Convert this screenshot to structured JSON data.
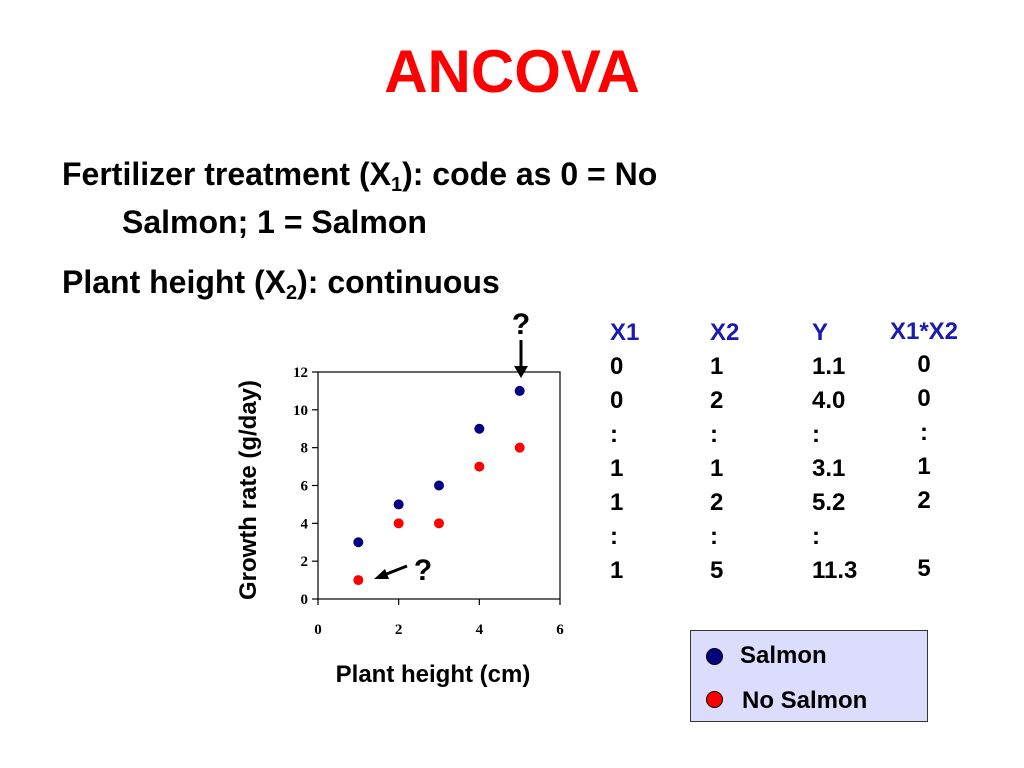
{
  "slide": {
    "title": "ANCOVA",
    "bullet1": {
      "prefix": "Fertilizer treatment (X",
      "sub": "1",
      "suffix": "): code as 0 = No",
      "line2": "Salmon; 1 = Salmon"
    },
    "bullet2": {
      "prefix": "Plant height (X",
      "sub": "2",
      "suffix": "): continuous"
    }
  },
  "table": {
    "columns": [
      {
        "header": "X1",
        "values": [
          "0",
          "0",
          ":",
          "1",
          "1",
          ":",
          "1"
        ]
      },
      {
        "header": "X2",
        "values": [
          "1",
          "2",
          ":",
          "1",
          "2",
          ":",
          "5"
        ]
      },
      {
        "header": "Y",
        "values": [
          "1.1",
          "4.0",
          ":",
          "3.1",
          "5.2",
          ":",
          "11.3"
        ]
      },
      {
        "header": "X1*X2",
        "values": [
          "0",
          "0",
          ":",
          "1",
          "2",
          "",
          "5"
        ]
      }
    ]
  },
  "legend": {
    "items": [
      {
        "label": "Salmon",
        "color": "#000080"
      },
      {
        "label": "No Salmon",
        "color": "#ff0000"
      }
    ]
  },
  "annotations": {
    "top_mark": "?",
    "bottom_mark": "?"
  },
  "chart_data": {
    "type": "scatter",
    "xlabel": "Plant height (cm)",
    "ylabel": "Growth rate (g/day)",
    "xlim": [
      0,
      6
    ],
    "ylim": [
      0,
      12
    ],
    "xticks": [
      0,
      2,
      4,
      6
    ],
    "yticks": [
      0,
      2,
      4,
      6,
      8,
      10,
      12
    ],
    "grid": false,
    "series": [
      {
        "name": "Salmon",
        "color": "#000080",
        "x": [
          1,
          2,
          3,
          4,
          5
        ],
        "y": [
          3,
          5,
          6,
          9,
          11
        ]
      },
      {
        "name": "No Salmon",
        "color": "#ff0000",
        "x": [
          1,
          2,
          3,
          4,
          5
        ],
        "y": [
          1,
          4,
          4,
          7,
          8
        ]
      }
    ]
  }
}
